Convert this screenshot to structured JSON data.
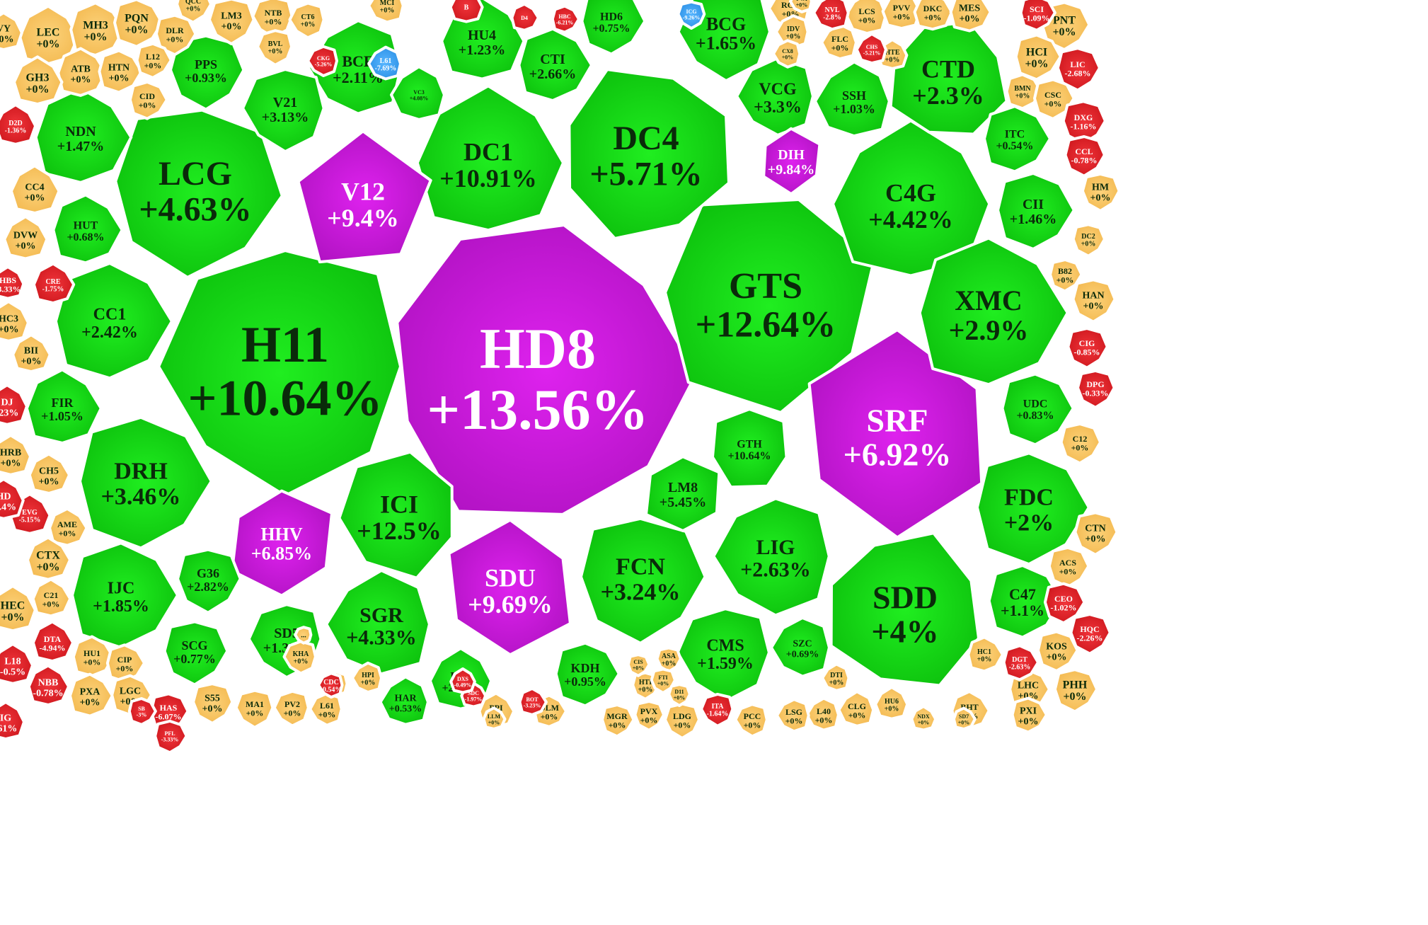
{
  "colors": {
    "up": "#12cc12",
    "up_edge": "#0aa40a",
    "ceiling": "#c818d6",
    "ceiling_edge": "#a010b0",
    "flat": "#f7c464",
    "flat_edge": "#e8a83e",
    "down": "#e0242a",
    "down_edge": "#b81218",
    "floor": "#3aa0ee",
    "floor_edge": "#1f7fcf",
    "dark_text": "#0a2a0a",
    "light_text": "#ffffff"
  },
  "chart_data": {
    "type": "heatmap",
    "layout": "voronoi-treemap",
    "cells": [
      {
        "ticker": "HD8",
        "change": "+13.56%",
        "value": 13.56,
        "status": "ceiling"
      },
      {
        "ticker": "H11",
        "change": "+10.64%",
        "value": 10.64,
        "status": "up"
      },
      {
        "ticker": "GTS",
        "change": "+12.64%",
        "value": 12.64,
        "status": "up"
      },
      {
        "ticker": "DC4",
        "change": "+5.71%",
        "value": 5.71,
        "status": "up"
      },
      {
        "ticker": "LCG",
        "change": "+4.63%",
        "value": 4.63,
        "status": "up"
      },
      {
        "ticker": "DC1",
        "change": "+10.91%",
        "value": 10.91,
        "status": "up"
      },
      {
        "ticker": "V12",
        "change": "+9.4%",
        "value": 9.4,
        "status": "ceiling"
      },
      {
        "ticker": "SRF",
        "change": "+6.92%",
        "value": 6.92,
        "status": "ceiling"
      },
      {
        "ticker": "SDD",
        "change": "+4%",
        "value": 4,
        "status": "up"
      },
      {
        "ticker": "C4G",
        "change": "+4.42%",
        "value": 4.42,
        "status": "up"
      },
      {
        "ticker": "CTD",
        "change": "+2.3%",
        "value": 2.3,
        "status": "up"
      },
      {
        "ticker": "XMC",
        "change": "+2.9%",
        "value": 2.9,
        "status": "up"
      },
      {
        "ticker": "ICI",
        "change": "+12.5%",
        "value": 12.5,
        "status": "up"
      },
      {
        "ticker": "SDU",
        "change": "+9.69%",
        "value": 9.69,
        "status": "ceiling"
      },
      {
        "ticker": "HHV",
        "change": "+6.85%",
        "value": 6.85,
        "status": "ceiling"
      },
      {
        "ticker": "DRH",
        "change": "+3.46%",
        "value": 3.46,
        "status": "up"
      },
      {
        "ticker": "FCN",
        "change": "+3.24%",
        "value": 3.24,
        "status": "up"
      },
      {
        "ticker": "LIG",
        "change": "+2.63%",
        "value": 2.63,
        "status": "up"
      },
      {
        "ticker": "SGR",
        "change": "+4.33%",
        "value": 4.33,
        "status": "up"
      },
      {
        "ticker": "FDC",
        "change": "+2%",
        "value": 2,
        "status": "up"
      },
      {
        "ticker": "CC1",
        "change": "+2.42%",
        "value": 2.42,
        "status": "up"
      },
      {
        "ticker": "BCG",
        "change": "+1.65%",
        "value": 1.65,
        "status": "up"
      },
      {
        "ticker": "BCE",
        "change": "+2.11%",
        "value": 2.11,
        "status": "up"
      },
      {
        "ticker": "VCG",
        "change": "+3.3%",
        "value": 3.3,
        "status": "up"
      },
      {
        "ticker": "DIH",
        "change": "+9.84%",
        "value": 9.84,
        "status": "ceiling"
      },
      {
        "ticker": "IJC",
        "change": "+1.85%",
        "value": 1.85,
        "status": "up"
      },
      {
        "ticker": "GTH",
        "change": "+10.64%",
        "value": 10.64,
        "status": "up"
      },
      {
        "ticker": "LM8",
        "change": "+5.45%",
        "value": 5.45,
        "status": "up"
      },
      {
        "ticker": "CMS",
        "change": "+1.59%",
        "value": 1.59,
        "status": "up"
      },
      {
        "ticker": "SD5",
        "change": "+1.35%",
        "value": 1.35,
        "status": "up"
      },
      {
        "ticker": "C47",
        "change": "+1.1%",
        "value": 1.1,
        "status": "up"
      },
      {
        "ticker": "NDN",
        "change": "+1.47%",
        "value": 1.47,
        "status": "up"
      },
      {
        "ticker": "CII",
        "change": "+1.46%",
        "value": 1.46,
        "status": "up"
      },
      {
        "ticker": "HU4",
        "change": "+1.23%",
        "value": 1.23,
        "status": "up"
      },
      {
        "ticker": "CTI",
        "change": "+2.66%",
        "value": 2.66,
        "status": "up"
      },
      {
        "ticker": "SSH",
        "change": "+1.03%",
        "value": 1.03,
        "status": "up"
      },
      {
        "ticker": "V21",
        "change": "+3.13%",
        "value": 3.13,
        "status": "up"
      },
      {
        "ticker": "PPS",
        "change": "+0.93%",
        "value": 0.93,
        "status": "up"
      },
      {
        "ticker": "HD6",
        "change": "+0.75%",
        "value": 0.75,
        "status": "up"
      },
      {
        "ticker": "ITC",
        "change": "+0.54%",
        "value": 0.54,
        "status": "up"
      },
      {
        "ticker": "UDC",
        "change": "+0.83%",
        "value": 0.83,
        "status": "up"
      },
      {
        "ticker": "HUT",
        "change": "+0.68%",
        "value": 0.68,
        "status": "up"
      },
      {
        "ticker": "FIR",
        "change": "+1.05%",
        "value": 1.05,
        "status": "up"
      },
      {
        "ticker": "G36",
        "change": "+2.82%",
        "value": 2.82,
        "status": "up"
      },
      {
        "ticker": "SCG",
        "change": "+0.77%",
        "value": 0.77,
        "status": "up"
      },
      {
        "ticker": "PC1",
        "change": "+2.28%",
        "value": 2.28,
        "status": "up"
      },
      {
        "ticker": "KDH",
        "change": "+0.95%",
        "value": 0.95,
        "status": "up"
      },
      {
        "ticker": "SZC",
        "change": "+0.69%",
        "value": 0.69,
        "status": "up"
      },
      {
        "ticker": "HAR",
        "change": "+0.53%",
        "value": 0.53,
        "status": "up"
      },
      {
        "ticker": "VC3",
        "change": "+4.08%",
        "value": 4.08,
        "status": "up"
      },
      {
        "ticker": "LEC",
        "change": "+0%",
        "value": 0,
        "status": "flat"
      },
      {
        "ticker": "MH3",
        "change": "+0%",
        "value": 0,
        "status": "flat"
      },
      {
        "ticker": "PQN",
        "change": "+0%",
        "value": 0,
        "status": "flat"
      },
      {
        "ticker": "DLR",
        "change": "+0%",
        "value": 0,
        "status": "flat"
      },
      {
        "ticker": "LM3",
        "change": "+0%",
        "value": 0,
        "status": "flat"
      },
      {
        "ticker": "NTB",
        "change": "+0%",
        "value": 0,
        "status": "flat"
      },
      {
        "ticker": "CT6",
        "change": "+0%",
        "value": 0,
        "status": "flat"
      },
      {
        "ticker": "QCC",
        "change": "+0%",
        "value": 0,
        "status": "flat"
      },
      {
        "ticker": "ATB",
        "change": "+0%",
        "value": 0,
        "status": "flat"
      },
      {
        "ticker": "HTN",
        "change": "+0%",
        "value": 0,
        "status": "flat"
      },
      {
        "ticker": "L12",
        "change": "+0%",
        "value": 0,
        "status": "flat"
      },
      {
        "ticker": "GH3",
        "change": "+0%",
        "value": 0,
        "status": "flat"
      },
      {
        "ticker": "CID",
        "change": "+0%",
        "value": 0,
        "status": "flat"
      },
      {
        "ticker": "BVL",
        "change": "+0%",
        "value": 0,
        "status": "flat"
      },
      {
        "ticker": "CC4",
        "change": "+0%",
        "value": 0,
        "status": "flat"
      },
      {
        "ticker": "DVW",
        "change": "+0%",
        "value": 0,
        "status": "flat"
      },
      {
        "ticker": "HC3",
        "change": "+0%",
        "value": 0,
        "status": "flat"
      },
      {
        "ticker": "BII",
        "change": "+0%",
        "value": 0,
        "status": "flat"
      },
      {
        "ticker": "HRB",
        "change": "+0%",
        "value": 0,
        "status": "flat"
      },
      {
        "ticker": "CH5",
        "change": "+0%",
        "value": 0,
        "status": "flat"
      },
      {
        "ticker": "AME",
        "change": "+0%",
        "value": 0,
        "status": "flat"
      },
      {
        "ticker": "CTX",
        "change": "+0%",
        "value": 0,
        "status": "flat"
      },
      {
        "ticker": "HEC",
        "change": "+0%",
        "value": 0,
        "status": "flat"
      },
      {
        "ticker": "C21",
        "change": "+0%",
        "value": 0,
        "status": "flat"
      },
      {
        "ticker": "HU1",
        "change": "+0%",
        "value": 0,
        "status": "flat"
      },
      {
        "ticker": "CIP",
        "change": "+0%",
        "value": 0,
        "status": "flat"
      },
      {
        "ticker": "PXA",
        "change": "+0%",
        "value": 0,
        "status": "flat"
      },
      {
        "ticker": "LGC",
        "change": "+0%",
        "value": 0,
        "status": "flat"
      },
      {
        "ticker": "S55",
        "change": "+0%",
        "value": 0,
        "status": "flat"
      },
      {
        "ticker": "MA1",
        "change": "+0%",
        "value": 0,
        "status": "flat"
      },
      {
        "ticker": "PV2",
        "change": "+0%",
        "value": 0,
        "status": "flat"
      },
      {
        "ticker": "L61",
        "change": "+0%",
        "value": 0,
        "status": "flat"
      },
      {
        "ticker": "KHA",
        "change": "+0%",
        "value": 0,
        "status": "flat"
      },
      {
        "ticker": "HPI",
        "change": "+0%",
        "value": 0,
        "status": "flat"
      },
      {
        "ticker": "PPI",
        "change": "+0%",
        "value": 0,
        "status": "flat"
      },
      {
        "ticker": "DLM",
        "change": "+0%",
        "value": 0,
        "status": "flat"
      },
      {
        "ticker": "MCI",
        "change": "+0%",
        "value": 0,
        "status": "flat"
      },
      {
        "ticker": "RCD",
        "change": "+0%",
        "value": 0,
        "status": "flat"
      },
      {
        "ticker": "IDV",
        "change": "+0%",
        "value": 0,
        "status": "flat"
      },
      {
        "ticker": "CX8",
        "change": "+0%",
        "value": 0,
        "status": "flat"
      },
      {
        "ticker": "FLC",
        "change": "+0%",
        "value": 0,
        "status": "flat"
      },
      {
        "ticker": "LCS",
        "change": "+0%",
        "value": 0,
        "status": "flat"
      },
      {
        "ticker": "HTE",
        "change": "+0%",
        "value": 0,
        "status": "flat"
      },
      {
        "ticker": "PVV",
        "change": "+0%",
        "value": 0,
        "status": "flat"
      },
      {
        "ticker": "DKC",
        "change": "+0%",
        "value": 0,
        "status": "flat"
      },
      {
        "ticker": "MES",
        "change": "+0%",
        "value": 0,
        "status": "flat"
      },
      {
        "ticker": "PNT",
        "change": "+0%",
        "value": 0,
        "status": "flat"
      },
      {
        "ticker": "HCI",
        "change": "+0%",
        "value": 0,
        "status": "flat"
      },
      {
        "ticker": "BMN",
        "change": "+0%",
        "value": 0,
        "status": "flat"
      },
      {
        "ticker": "CSC",
        "change": "+0%",
        "value": 0,
        "status": "flat"
      },
      {
        "ticker": "HM",
        "change": "+0%",
        "value": 0,
        "status": "flat"
      },
      {
        "ticker": "DC2",
        "change": "+0%",
        "value": 0,
        "status": "flat"
      },
      {
        "ticker": "B82",
        "change": "+0%",
        "value": 0,
        "status": "flat"
      },
      {
        "ticker": "HAN",
        "change": "+0%",
        "value": 0,
        "status": "flat"
      },
      {
        "ticker": "C12",
        "change": "+0%",
        "value": 0,
        "status": "flat"
      },
      {
        "ticker": "CTN",
        "change": "+0%",
        "value": 0,
        "status": "flat"
      },
      {
        "ticker": "ACS",
        "change": "+0%",
        "value": 0,
        "status": "flat"
      },
      {
        "ticker": "KOS",
        "change": "+0%",
        "value": 0,
        "status": "flat"
      },
      {
        "ticker": "HC1",
        "change": "+0%",
        "value": 0,
        "status": "flat"
      },
      {
        "ticker": "LHC",
        "change": "+0%",
        "value": 0,
        "status": "flat"
      },
      {
        "ticker": "PHH",
        "change": "+0%",
        "value": 0,
        "status": "flat"
      },
      {
        "ticker": "PXI",
        "change": "+0%",
        "value": 0,
        "status": "flat"
      },
      {
        "ticker": "BHT",
        "change": "+0%",
        "value": 0,
        "status": "flat"
      },
      {
        "ticker": "HU6",
        "change": "+0%",
        "value": 0,
        "status": "flat"
      },
      {
        "ticker": "CLG",
        "change": "+0%",
        "value": 0,
        "status": "flat"
      },
      {
        "ticker": "DTI",
        "change": "+0%",
        "value": 0,
        "status": "flat"
      },
      {
        "ticker": "L40",
        "change": "+0%",
        "value": 0,
        "status": "flat"
      },
      {
        "ticker": "LSG",
        "change": "+0%",
        "value": 0,
        "status": "flat"
      },
      {
        "ticker": "PCC",
        "change": "+0%",
        "value": 0,
        "status": "flat"
      },
      {
        "ticker": "LDG",
        "change": "+0%",
        "value": 0,
        "status": "flat"
      },
      {
        "ticker": "PVX",
        "change": "+0%",
        "value": 0,
        "status": "flat"
      },
      {
        "ticker": "MGR",
        "change": "+0%",
        "value": 0,
        "status": "flat"
      },
      {
        "ticker": "HTI",
        "change": "+0%",
        "value": 0,
        "status": "flat"
      },
      {
        "ticker": "CIS",
        "change": "+0%",
        "value": 0,
        "status": "flat"
      },
      {
        "ticker": "ASA",
        "change": "+0%",
        "value": 0,
        "status": "flat"
      },
      {
        "ticker": "FTI",
        "change": "+0%",
        "value": 0,
        "status": "flat"
      },
      {
        "ticker": "D11",
        "change": "+0%",
        "value": 0,
        "status": "flat"
      },
      {
        "ticker": "LLM",
        "change": "+0%",
        "value": 0,
        "status": "flat"
      },
      {
        "ticker": "SD7",
        "change": "+0%",
        "value": 0,
        "status": "flat"
      },
      {
        "ticker": "NDX",
        "change": "+0%",
        "value": 0,
        "status": "flat"
      },
      {
        "ticker": "PVA",
        "change": "+0%",
        "value": 0,
        "status": "flat"
      },
      {
        "ticker": "DCF",
        "change": "+0%",
        "value": 0,
        "status": "flat"
      },
      {
        "ticker": "VY",
        "change": "+0%",
        "value": 0,
        "status": "flat"
      },
      {
        "ticker": "...",
        "change": "",
        "value": null,
        "status": "flat"
      },
      {
        "ticker": "D2D",
        "change": "-1.36%",
        "value": -1.36,
        "status": "down"
      },
      {
        "ticker": "CRE",
        "change": "-1.75%",
        "value": -1.75,
        "status": "down"
      },
      {
        "ticker": "EVG",
        "change": "-5.15%",
        "value": -5.15,
        "status": "down"
      },
      {
        "ticker": "DTA",
        "change": "-4.94%",
        "value": -4.94,
        "status": "down"
      },
      {
        "ticker": "NBB",
        "change": "-0.78%",
        "value": -0.78,
        "status": "down"
      },
      {
        "ticker": "HAS",
        "change": "-6.07%",
        "value": -6.07,
        "status": "down"
      },
      {
        "ticker": "PFL",
        "change": "-3.33%",
        "value": -3.33,
        "status": "down"
      },
      {
        "ticker": "CDC",
        "change": "-0.54%",
        "value": -0.54,
        "status": "down"
      },
      {
        "ticker": "DXG",
        "change": "-1.16%",
        "value": -1.16,
        "status": "down"
      },
      {
        "ticker": "LIC",
        "change": "-2.68%",
        "value": -2.68,
        "status": "down"
      },
      {
        "ticker": "SCI",
        "change": "-1.09%",
        "value": -1.09,
        "status": "down"
      },
      {
        "ticker": "CCL",
        "change": "-0.78%",
        "value": -0.78,
        "status": "down"
      },
      {
        "ticker": "CIG",
        "change": "-0.85%",
        "value": -0.85,
        "status": "down"
      },
      {
        "ticker": "DPG",
        "change": "-0.33%",
        "value": -0.33,
        "status": "down"
      },
      {
        "ticker": "CEO",
        "change": "-1.02%",
        "value": -1.02,
        "status": "down"
      },
      {
        "ticker": "HQC",
        "change": "-2.26%",
        "value": -2.26,
        "status": "down"
      },
      {
        "ticker": "DGT",
        "change": "-2.63%",
        "value": -2.63,
        "status": "down"
      },
      {
        "ticker": "NVL",
        "change": "-2.8%",
        "value": -2.8,
        "status": "down"
      },
      {
        "ticker": "CHS",
        "change": "-5.21%",
        "value": -5.21,
        "status": "down"
      },
      {
        "ticker": "BOT",
        "change": "-3.23%",
        "value": -3.23,
        "status": "down"
      },
      {
        "ticker": "ITA",
        "change": "-1.64%",
        "value": -1.64,
        "status": "down"
      },
      {
        "ticker": "L18",
        "change": "-0.5%",
        "value": -0.5,
        "status": "down"
      },
      {
        "ticker": "HD",
        "change": "-1.4%",
        "value": -1.4,
        "status": "down"
      },
      {
        "ticker": "DJ",
        "change": "-23%",
        "value": -23,
        "status": "down"
      },
      {
        "ticker": "IG",
        "change": "-61%",
        "value": -61,
        "status": "down"
      },
      {
        "ticker": "D4",
        "change": "",
        "value": null,
        "status": "down"
      },
      {
        "ticker": "HBC",
        "change": "-6.21%",
        "value": -6.21,
        "status": "down"
      },
      {
        "ticker": "CKG",
        "change": "-5.26%",
        "value": -5.26,
        "status": "down"
      },
      {
        "ticker": "SDC",
        "change": "-1.97%",
        "value": -1.97,
        "status": "down"
      },
      {
        "ticker": "DXS",
        "change": "-0.49%",
        "value": -0.49,
        "status": "down"
      },
      {
        "ticker": "HBS",
        "change": "-3.33%",
        "value": -3.33,
        "status": "down"
      },
      {
        "ticker": "SB",
        "change": "-3%",
        "value": -3,
        "status": "down"
      },
      {
        "ticker": "B",
        "change": "",
        "value": null,
        "status": "down"
      },
      {
        "ticker": "L61",
        "change": "-7.69%",
        "value": -7.69,
        "status": "floor"
      },
      {
        "ticker": "ICG",
        "change": "-9.26%",
        "value": -9.26,
        "status": "floor"
      },
      {
        "ticker": "L35",
        "change": "-9.84%",
        "value": -9.84,
        "status": "floor"
      }
    ]
  }
}
